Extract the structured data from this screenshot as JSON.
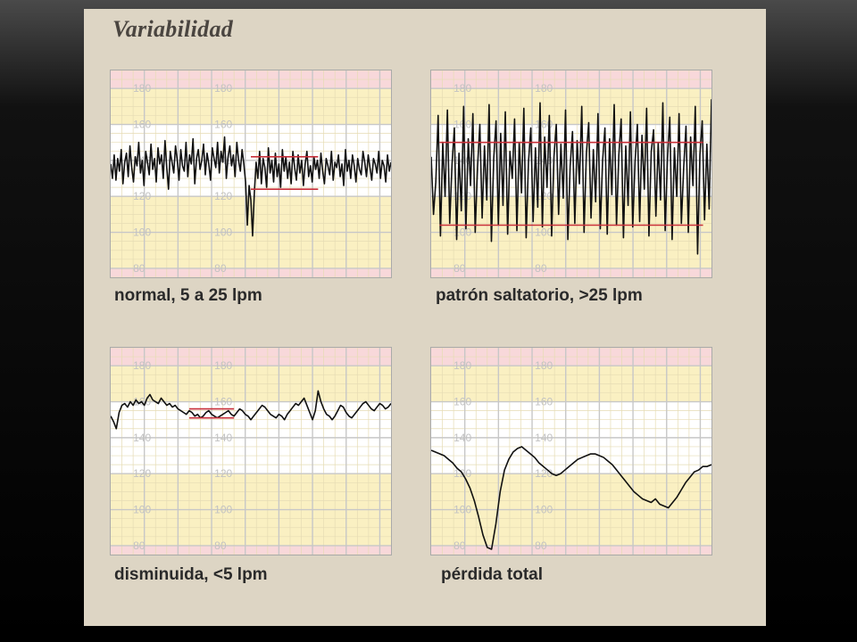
{
  "title": "Variabilidad",
  "colors": {
    "panel_bg": "#ddd5c4",
    "zone_red": "#f8d8da",
    "zone_yellow": "#faf0c2",
    "zone_white": "#ffffff",
    "grid_minor": "#e6dcb4",
    "grid_major": "#c7c7c7",
    "trace": "#111111",
    "marker": "#c8303a"
  },
  "chart_data": [
    {
      "type": "line",
      "title": "normal, 5 a 25 lpm",
      "ylim": [
        75,
        190
      ],
      "yticks": [
        80,
        100,
        120,
        140,
        160,
        180
      ],
      "zones": [
        {
          "from": 180,
          "to": 190,
          "color": "red"
        },
        {
          "from": 160,
          "to": 180,
          "color": "yellow"
        },
        {
          "from": 120,
          "to": 160,
          "color": "white"
        },
        {
          "from": 100,
          "to": 120,
          "color": "yellow"
        },
        {
          "from": 80,
          "to": 100,
          "color": "yellow"
        },
        {
          "from": 75,
          "to": 80,
          "color": "red"
        }
      ],
      "series": [
        {
          "values": [
            138,
            130,
            143,
            129,
            141,
            134,
            146,
            127,
            139,
            144,
            131,
            148,
            136,
            128,
            142,
            137,
            150,
            133,
            140,
            126,
            145,
            139,
            132,
            149,
            135,
            141,
            128,
            147,
            138,
            143,
            130,
            151,
            136,
            124,
            145,
            139,
            133,
            148,
            140,
            129,
            146,
            137,
            134,
            150,
            131,
            143,
            138,
            152,
            127,
            141,
            146,
            135,
            140,
            149,
            132,
            144,
            138,
            129,
            147,
            141,
            136,
            150,
            133,
            145,
            139,
            153,
            130,
            142,
            148,
            137,
            143,
            131,
            150,
            140,
            134,
            146,
            138,
            128,
            104,
            126,
            118,
            98,
            122,
            139,
            130,
            145,
            127,
            141,
            136,
            125,
            147,
            133,
            140,
            128,
            144,
            131,
            138,
            125,
            146,
            134,
            142,
            130,
            139,
            127,
            145,
            136,
            129,
            143,
            133,
            140,
            126,
            138,
            145,
            131,
            137,
            128,
            142,
            135,
            140,
            130,
            144,
            134,
            127,
            141,
            137,
            132,
            145,
            129,
            139,
            136,
            143,
            131,
            138,
            126,
            146,
            134,
            140,
            130,
            143,
            137,
            128,
            141,
            135,
            132,
            145,
            139,
            131,
            143,
            136,
            129,
            141,
            138,
            133,
            145,
            130,
            140,
            137,
            128,
            143,
            134,
            139
          ]
        }
      ],
      "markers": [
        {
          "value": 142
        },
        {
          "value": 124
        }
      ]
    },
    {
      "type": "line",
      "title": "patrón saltatorio, >25 lpm",
      "ylim": [
        75,
        190
      ],
      "yticks": [
        80,
        100,
        120,
        140,
        160,
        180
      ],
      "zones": [
        {
          "from": 180,
          "to": 190,
          "color": "red"
        },
        {
          "from": 160,
          "to": 180,
          "color": "yellow"
        },
        {
          "from": 120,
          "to": 160,
          "color": "white"
        },
        {
          "from": 100,
          "to": 120,
          "color": "yellow"
        },
        {
          "from": 80,
          "to": 100,
          "color": "yellow"
        },
        {
          "from": 75,
          "to": 80,
          "color": "red"
        }
      ],
      "series": [
        {
          "values": [
            142,
            110,
            128,
            165,
            98,
            150,
            120,
            168,
            105,
            138,
            158,
            96,
            144,
            112,
            170,
            102,
            152,
            126,
            166,
            100,
            136,
            160,
            108,
            148,
            118,
            171,
            95,
            141,
            162,
            104,
            155,
            115,
            167,
            99,
            145,
            130,
            163,
            101,
            150,
            122,
            169,
            97,
            139,
            158,
            106,
            147,
            114,
            172,
            103,
            153,
            125,
            165,
            98,
            142,
            160,
            110,
            149,
            119,
            168,
            96,
            137,
            156,
            105,
            151,
            127,
            170,
            100,
            144,
            161,
            108,
            146,
            117,
            166,
            102,
            140,
            158,
            99,
            152,
            121,
            171,
            104,
            143,
            163,
            97,
            148,
            115,
            167,
            103,
            139,
            160,
            106,
            154,
            124,
            169,
            98,
            145,
            157,
            109,
            150,
            118,
            172,
            101,
            141,
            164,
            96,
            147,
            120,
            166,
            105,
            136,
            159,
            100,
            153,
            126,
            170,
            88,
            143,
            162,
            107,
            149,
            113,
            174
          ]
        }
      ],
      "markers": [
        {
          "value": 150
        },
        {
          "value": 104
        }
      ]
    },
    {
      "type": "line",
      "title": "disminuida, <5 lpm",
      "ylim": [
        75,
        190
      ],
      "yticks": [
        80,
        100,
        120,
        140,
        160,
        180
      ],
      "zones": [
        {
          "from": 180,
          "to": 190,
          "color": "red"
        },
        {
          "from": 160,
          "to": 180,
          "color": "yellow"
        },
        {
          "from": 120,
          "to": 160,
          "color": "white"
        },
        {
          "from": 100,
          "to": 120,
          "color": "yellow"
        },
        {
          "from": 80,
          "to": 100,
          "color": "yellow"
        },
        {
          "from": 75,
          "to": 80,
          "color": "red"
        }
      ],
      "series": [
        {
          "values": [
            152,
            149,
            145,
            154,
            158,
            159,
            157,
            160,
            158,
            161,
            159,
            160,
            158,
            162,
            164,
            161,
            160,
            159,
            162,
            160,
            158,
            159,
            157,
            158,
            156,
            155,
            154,
            153,
            155,
            154,
            152,
            153,
            151,
            152,
            154,
            155,
            153,
            152,
            151,
            152,
            153,
            154,
            155,
            153,
            152,
            154,
            156,
            155,
            153,
            152,
            150,
            152,
            154,
            156,
            158,
            157,
            155,
            153,
            152,
            151,
            153,
            152,
            150,
            153,
            155,
            157,
            159,
            158,
            160,
            162,
            158,
            154,
            150,
            155,
            166,
            160,
            156,
            153,
            152,
            150,
            152,
            155,
            158,
            157,
            154,
            152,
            151,
            153,
            155,
            157,
            159,
            160,
            158,
            156,
            155,
            157,
            159,
            158,
            156,
            157,
            159
          ]
        }
      ],
      "markers": [
        {
          "value": 156
        },
        {
          "value": 151
        }
      ]
    },
    {
      "type": "line",
      "title": "pérdida total",
      "ylim": [
        75,
        190
      ],
      "yticks": [
        80,
        100,
        120,
        140,
        160,
        180
      ],
      "zones": [
        {
          "from": 180,
          "to": 190,
          "color": "red"
        },
        {
          "from": 160,
          "to": 180,
          "color": "yellow"
        },
        {
          "from": 120,
          "to": 160,
          "color": "white"
        },
        {
          "from": 100,
          "to": 120,
          "color": "yellow"
        },
        {
          "from": 80,
          "to": 100,
          "color": "yellow"
        },
        {
          "from": 75,
          "to": 80,
          "color": "red"
        }
      ],
      "series": [
        {
          "values": [
            133,
            132,
            131,
            130,
            128,
            126,
            123,
            121,
            117,
            112,
            105,
            96,
            86,
            79,
            78,
            92,
            110,
            122,
            128,
            132,
            134,
            135,
            133,
            131,
            129,
            126,
            124,
            122,
            120,
            119,
            120,
            122,
            124,
            126,
            128,
            129,
            130,
            131,
            131,
            130,
            129,
            127,
            125,
            122,
            119,
            116,
            113,
            110,
            108,
            106,
            105,
            104,
            106,
            103,
            102,
            101,
            104,
            107,
            111,
            115,
            118,
            121,
            122,
            124,
            124,
            125
          ]
        }
      ],
      "markers": []
    }
  ],
  "panels": [
    {
      "caption": "normal, 5 a 25 lpm"
    },
    {
      "caption": "patrón saltatorio, >25 lpm"
    },
    {
      "caption": "disminuida, <5 lpm"
    },
    {
      "caption": "pérdida total"
    }
  ]
}
